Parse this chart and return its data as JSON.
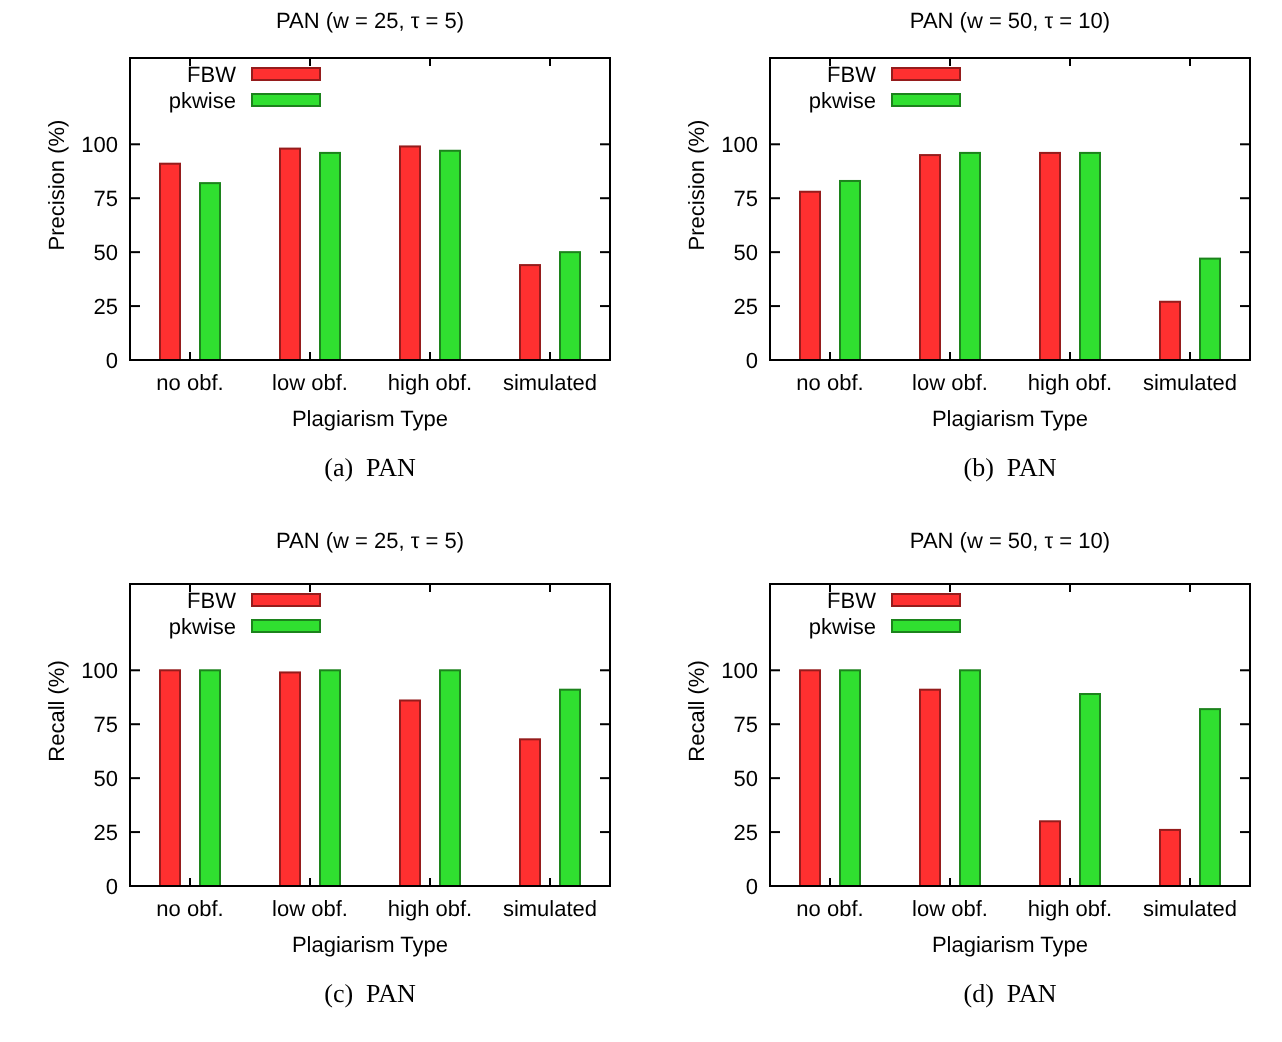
{
  "chart_data": [
    {
      "type": "bar",
      "title": "PAN (w = 25, τ = 5)",
      "xlabel": "Plagiarism Type",
      "ylabel": "Precision (%)",
      "categories": [
        "no obf.",
        "low obf.",
        "high obf.",
        "simulated"
      ],
      "series": [
        {
          "name": "FBW",
          "color": "#ff3030",
          "values": [
            91,
            98,
            99,
            44
          ]
        },
        {
          "name": "pkwise",
          "color": "#30e030",
          "values": [
            82,
            96,
            97,
            50
          ]
        }
      ],
      "ylim": [
        0,
        140
      ],
      "yticks": [
        0,
        25,
        50,
        75,
        100
      ],
      "legend": "top left",
      "grid": false,
      "annotations": [
        "(a)  PAN"
      ]
    },
    {
      "type": "bar",
      "title": "PAN (w = 50, τ = 10)",
      "xlabel": "Plagiarism Type",
      "ylabel": "Precision (%)",
      "categories": [
        "no obf.",
        "low obf.",
        "high obf.",
        "simulated"
      ],
      "series": [
        {
          "name": "FBW",
          "color": "#ff3030",
          "values": [
            78,
            95,
            96,
            27
          ]
        },
        {
          "name": "pkwise",
          "color": "#30e030",
          "values": [
            83,
            96,
            96,
            47
          ]
        }
      ],
      "ylim": [
        0,
        140
      ],
      "yticks": [
        0,
        25,
        50,
        75,
        100
      ],
      "legend": "top left",
      "grid": false,
      "annotations": [
        "(b)  PAN"
      ]
    },
    {
      "type": "bar",
      "title": "PAN (w = 25, τ = 5)",
      "xlabel": "Plagiarism Type",
      "ylabel": "Recall (%)",
      "categories": [
        "no obf.",
        "low obf.",
        "high obf.",
        "simulated"
      ],
      "series": [
        {
          "name": "FBW",
          "color": "#ff3030",
          "values": [
            100,
            99,
            86,
            68
          ]
        },
        {
          "name": "pkwise",
          "color": "#30e030",
          "values": [
            100,
            100,
            100,
            91
          ]
        }
      ],
      "ylim": [
        0,
        140
      ],
      "yticks": [
        0,
        25,
        50,
        75,
        100
      ],
      "legend": "top left",
      "grid": false,
      "annotations": [
        "(c)  PAN"
      ]
    },
    {
      "type": "bar",
      "title": "PAN (w = 50, τ = 10)",
      "xlabel": "Plagiarism Type",
      "ylabel": "Recall (%)",
      "categories": [
        "no obf.",
        "low obf.",
        "high obf.",
        "simulated"
      ],
      "series": [
        {
          "name": "FBW",
          "color": "#ff3030",
          "values": [
            100,
            91,
            30,
            26
          ]
        },
        {
          "name": "pkwise",
          "color": "#30e030",
          "values": [
            100,
            100,
            89,
            82
          ]
        }
      ],
      "ylim": [
        0,
        140
      ],
      "yticks": [
        0,
        25,
        50,
        75,
        100
      ],
      "legend": "top left",
      "grid": false,
      "annotations": [
        "(d)  PAN"
      ]
    }
  ]
}
